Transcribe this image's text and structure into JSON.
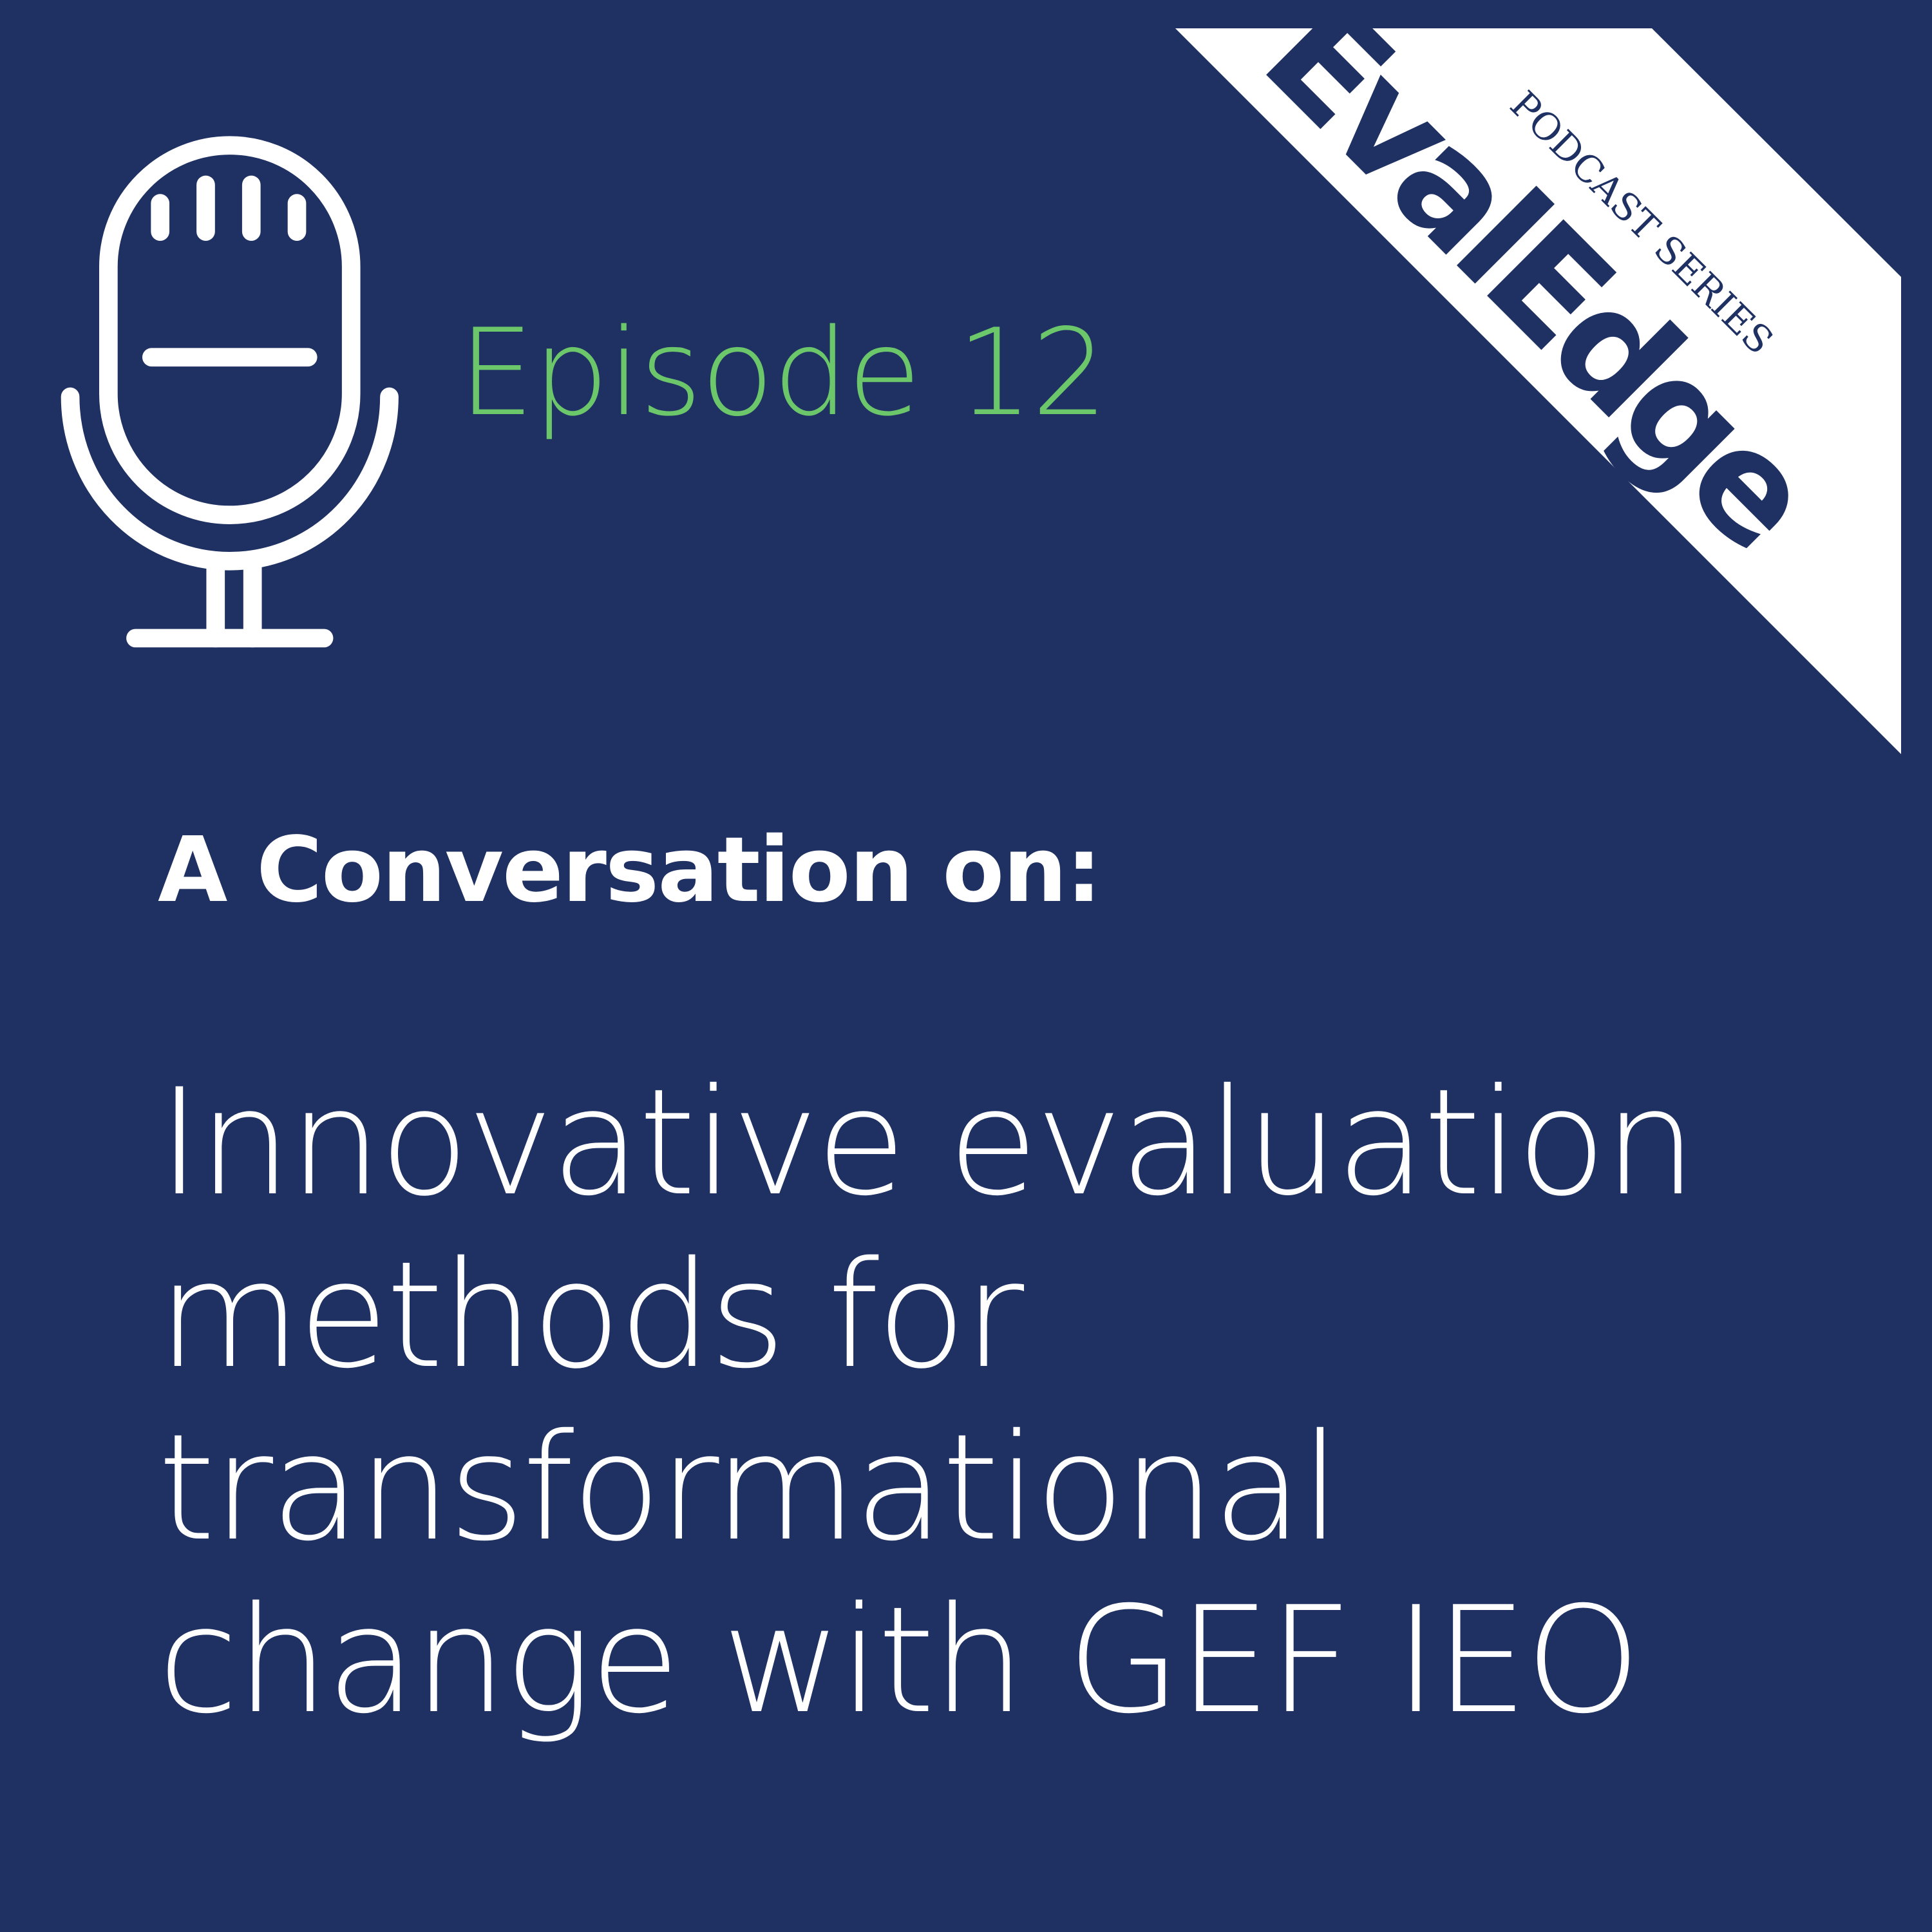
{
  "brand": {
    "logo_text": "EvalEdge",
    "logo_subtitle": "PODCAST SERIES",
    "colors": {
      "background": "#1f3163",
      "accent_green": "#6cc66a",
      "banner": "#ffffff",
      "logo": "#1f3163"
    }
  },
  "icon": "microphone-icon",
  "episode_label": "Episode 12",
  "lead": "A Conversation on:",
  "title_lines": [
    "Innovative evaluation",
    "methods for",
    "transformational",
    "change with GEF IEO"
  ]
}
